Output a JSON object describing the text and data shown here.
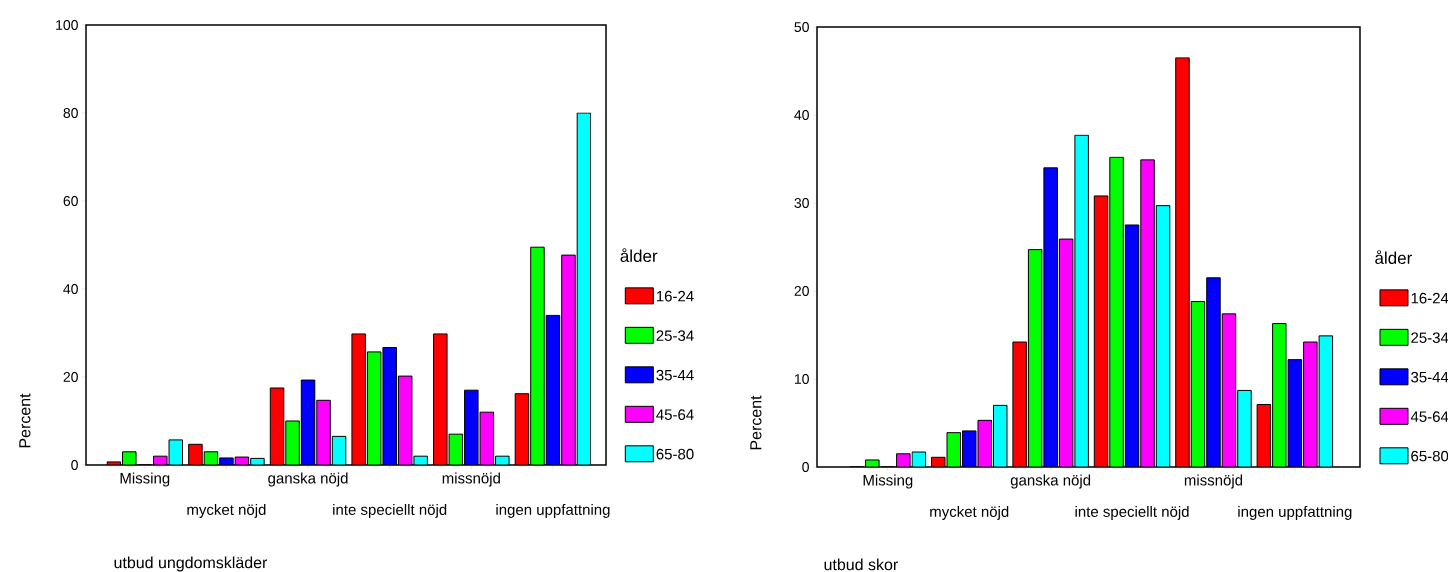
{
  "chart_data": [
    {
      "type": "bar",
      "xlabel": "utbud ungdomskläder",
      "ylabel": "Percent",
      "legend_title": "ålder",
      "legend": "right",
      "categories": [
        "Missing",
        "mycket nöjd",
        "ganska nöjd",
        "inte speciellt nöjd",
        "missnöjd",
        "ingen uppfattning"
      ],
      "ylim": [
        0,
        100
      ],
      "yticks": [
        0,
        20,
        40,
        60,
        80,
        100
      ],
      "series": [
        {
          "name": "16-24",
          "color": "#ff0000",
          "values": [
            0.7,
            4.7,
            17.5,
            29.8,
            29.8,
            16.2
          ]
        },
        {
          "name": "25-34",
          "color": "#00ff00",
          "values": [
            3,
            3,
            10,
            25.7,
            7,
            49.5
          ]
        },
        {
          "name": "35-44",
          "color": "#0000ff",
          "values": [
            0,
            1.6,
            19.3,
            26.7,
            17,
            34
          ]
        },
        {
          "name": "45-64",
          "color": "#ff00ff",
          "values": [
            2,
            1.8,
            14.7,
            20.2,
            12,
            47.7
          ]
        },
        {
          "name": "65-80",
          "color": "#00ffff",
          "values": [
            5.7,
            1.5,
            6.5,
            2,
            2,
            80
          ]
        }
      ]
    },
    {
      "type": "bar",
      "xlabel": "utbud skor",
      "ylabel": "Percent",
      "legend_title": "ålder",
      "legend": "right",
      "categories": [
        "Missing",
        "mycket nöjd",
        "ganska nöjd",
        "inte speciellt nöjd",
        "missnöjd",
        "ingen uppfattning"
      ],
      "ylim": [
        0,
        50
      ],
      "yticks": [
        0,
        10,
        20,
        30,
        40,
        50
      ],
      "series": [
        {
          "name": "16-24",
          "color": "#ff0000",
          "values": [
            0,
            1.1,
            14.2,
            30.8,
            46.5,
            7.1
          ]
        },
        {
          "name": "25-34",
          "color": "#00ff00",
          "values": [
            0.8,
            3.9,
            24.7,
            35.2,
            18.8,
            16.3
          ]
        },
        {
          "name": "35-44",
          "color": "#0000ff",
          "values": [
            0,
            4.1,
            34,
            27.5,
            21.5,
            12.2
          ]
        },
        {
          "name": "45-64",
          "color": "#ff00ff",
          "values": [
            1.5,
            5.3,
            25.9,
            34.9,
            17.4,
            14.2
          ]
        },
        {
          "name": "65-80",
          "color": "#00ffff",
          "values": [
            1.7,
            7,
            37.7,
            29.7,
            8.7,
            14.9
          ]
        }
      ]
    }
  ]
}
